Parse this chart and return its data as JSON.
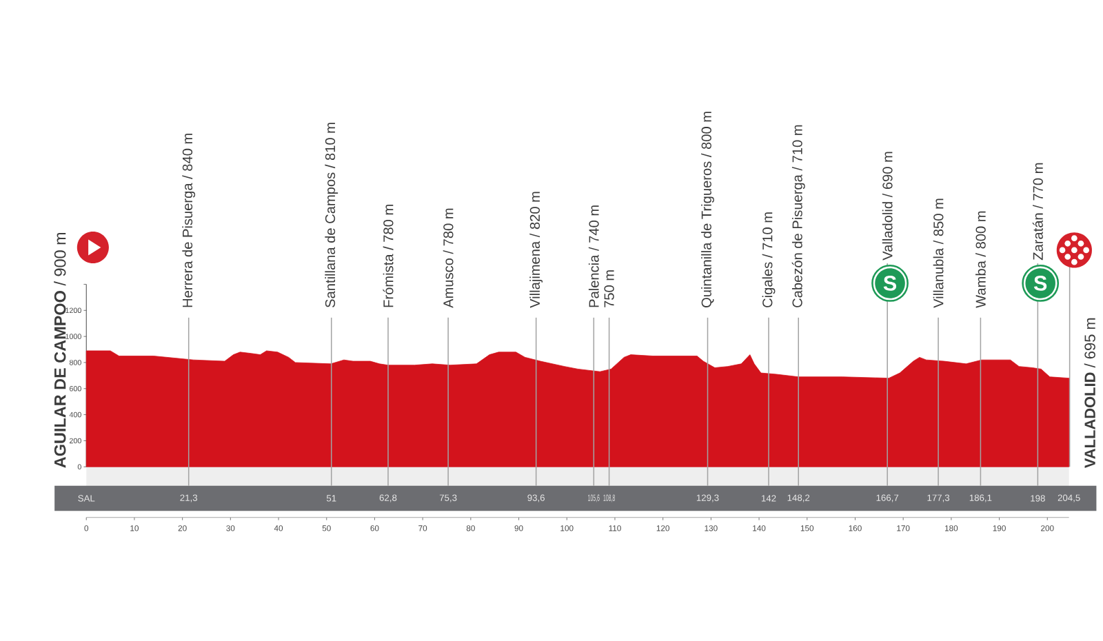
{
  "chart_data": {
    "type": "area",
    "color": "#d3131c",
    "x": [
      0,
      5,
      6.8,
      14,
      22.3,
      28.8,
      30.6,
      32,
      34.3,
      36.2,
      37.5,
      39.8,
      42.1,
      43.5,
      50.9,
      53.6,
      55.5,
      59.1,
      61,
      62.8,
      68.3,
      72,
      75.7,
      81.2,
      83.9,
      85.8,
      89.4,
      91.3,
      94.5,
      99.5,
      102.3,
      106.9,
      109.2,
      111.9,
      113.3,
      117.9,
      127.1,
      128.4,
      130.8,
      133.5,
      136.3,
      138.1,
      139,
      140.4,
      143.6,
      148.2,
      157.4,
      167,
      169.3,
      172.1,
      173.4,
      174.8,
      178.5,
      183.1,
      186.3,
      192.3,
      194.1,
      196.9,
      198.7,
      200.5,
      204.5
    ],
    "values": [
      890,
      890,
      850,
      850,
      820,
      810,
      860,
      880,
      870,
      860,
      890,
      880,
      840,
      800,
      790,
      820,
      810,
      810,
      790,
      780,
      780,
      790,
      780,
      790,
      860,
      880,
      880,
      840,
      810,
      770,
      750,
      730,
      750,
      840,
      860,
      850,
      850,
      810,
      760,
      770,
      790,
      860,
      790,
      720,
      710,
      690,
      690,
      680,
      720,
      810,
      840,
      820,
      810,
      790,
      820,
      820,
      770,
      760,
      750,
      690,
      680
    ],
    "xlim": [
      0,
      204.5
    ],
    "xticks": [
      0,
      10,
      20,
      30,
      40,
      50,
      60,
      70,
      80,
      90,
      100,
      110,
      120,
      130,
      140,
      150,
      160,
      170,
      180,
      190,
      200
    ],
    "ylim": [
      0,
      1400
    ],
    "yticks": [
      0,
      200,
      400,
      600,
      800,
      1000,
      1200,
      {
        "value": 1400,
        "label": null
      }
    ],
    "x2lim": [
      0,
      204.5
    ],
    "x2ticks": [
      {
        "value": 0,
        "label": "SAL"
      },
      {
        "value": 21.3,
        "label": "21,3"
      },
      {
        "value": 51,
        "label": "51"
      },
      {
        "value": 62.8,
        "label": "62,8"
      },
      {
        "value": 75.3,
        "label": "75,3"
      },
      {
        "value": 93.6,
        "label": "93,6"
      },
      {
        "value": 105.6,
        "label": "105,6"
      },
      {
        "value": 108.8,
        "label": "108,8"
      },
      {
        "value": 129.3,
        "label": "129,3"
      },
      {
        "value": 142,
        "label": "142"
      },
      {
        "value": 148.2,
        "label": "148,2"
      },
      {
        "value": 166.7,
        "label": "166,7"
      },
      {
        "value": 177.3,
        "label": "177,3"
      },
      {
        "value": 186.1,
        "label": "186,1"
      },
      {
        "value": 198,
        "label": "198"
      },
      {
        "value": 204.5,
        "label": "204,5"
      }
    ],
    "ref_lines": [
      {
        "axis": "x",
        "value": 21.3,
        "label": "Herrera de Pisuerga / 840 m"
      },
      {
        "axis": "x",
        "value": 51,
        "label": "Santillana de Campos / 810 m"
      },
      {
        "axis": "x",
        "value": 62.8,
        "label": "Frómista / 780 m"
      },
      {
        "axis": "x",
        "value": 75.3,
        "label": "Amusco / 780 m"
      },
      {
        "axis": "x",
        "value": 93.6,
        "label": "Villajimena / 820 m"
      },
      {
        "axis": "x",
        "value": 105.6,
        "label": "Palencia / 740 m"
      },
      {
        "axis": "x",
        "value": 108.8,
        "label": "750 m"
      },
      {
        "axis": "x",
        "value": 129.3,
        "label": "Quintanilla de Trigueros / 800 m"
      },
      {
        "axis": "x",
        "value": 142,
        "label": "Cigales / 710 m"
      },
      {
        "axis": "x",
        "value": 148.2,
        "label": "Cabezón de Pisuerga / 710 m"
      },
      {
        "axis": "x",
        "value": 166.7,
        "label": "Valladolid / 690 m"
      },
      {
        "axis": "x",
        "value": 177.3,
        "label": "Villanubla / 850 m"
      },
      {
        "axis": "x",
        "value": 186.1,
        "label": "Wamba / 800 m"
      },
      {
        "axis": "x",
        "value": 198,
        "label": "Zaratán / 770 m"
      }
    ],
    "annotations": [
      {
        "text": "**AGUILAR DE CAMPOO** / 900 m",
        "x": 0
      },
      {
        "text": "**VALLADOLID** / 695 m",
        "x": 204.5
      },
      {
        "text": "S",
        "x": 166.7
      },
      {
        "text": "S",
        "x": 198
      }
    ]
  }
}
